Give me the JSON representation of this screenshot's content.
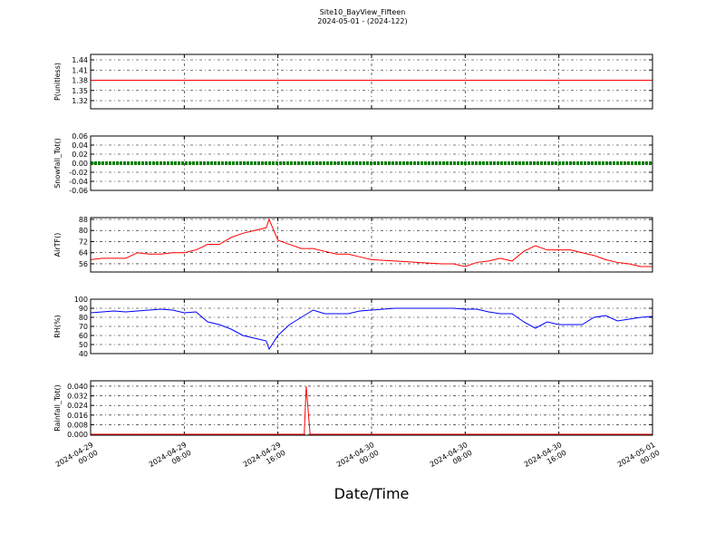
{
  "title": "Site10_BayView_Fifteen",
  "subtitle": "2024-05-01 - (2024-122)",
  "x_axis": {
    "label": "Date/Time",
    "xlim": [
      "2024-04-29 00:00",
      "2024-05-01 00:00"
    ],
    "xticks": [
      "2024-04-29 00:00",
      "2024-04-29 08:00",
      "2024-04-29 16:00",
      "2024-04-30 00:00",
      "2024-04-30 08:00",
      "2024-04-30 16:00",
      "2024-05-01 00:00"
    ]
  },
  "chart_data": [
    {
      "type": "line",
      "ylabel": "P(unitless)",
      "ylim": [
        1.296,
        1.456
      ],
      "yticks": [
        1.32,
        1.35,
        1.38,
        1.41,
        1.44
      ],
      "grid": true,
      "series": [
        {
          "color": "#ff0000",
          "x": [
            "2024-04-29 00:00",
            "2024-05-01 00:00"
          ],
          "values": [
            1.38,
            1.38
          ]
        }
      ]
    },
    {
      "type": "line",
      "ylabel": "Snowfall_Tot()",
      "ylim": [
        -0.06,
        0.06
      ],
      "yticks": [
        -0.06,
        -0.04,
        -0.02,
        {
          "value": 0,
          "label": "0.00"
        },
        0.02,
        0.04,
        0.06
      ],
      "grid": true,
      "series": [
        {
          "color": "#008000",
          "marker": true,
          "x": [
            "2024-04-29 00:00",
            "2024-05-01 00:00"
          ],
          "values": [
            0,
            0
          ]
        }
      ]
    },
    {
      "type": "line",
      "ylabel": "AirTF()",
      "ylim": [
        50.1,
        89.3
      ],
      "yticks": [
        56,
        64,
        72,
        80,
        88
      ],
      "grid": true,
      "series": [
        {
          "color": "#ff0000",
          "x": [
            "2024-04-29 00:00",
            "2024-04-29 01:00",
            "2024-04-29 02:00",
            "2024-04-29 03:00",
            "2024-04-29 04:00",
            "2024-04-29 05:00",
            "2024-04-29 06:00",
            "2024-04-29 07:00",
            "2024-04-29 08:00",
            "2024-04-29 09:00",
            "2024-04-29 10:00",
            "2024-04-29 11:00",
            "2024-04-29 12:00",
            "2024-04-29 13:00",
            "2024-04-29 14:00",
            "2024-04-29 15:00",
            "2024-04-29 15:15",
            "2024-04-29 16:00",
            "2024-04-29 17:00",
            "2024-04-29 18:00",
            "2024-04-29 19:00",
            "2024-04-29 20:00",
            "2024-04-29 21:00",
            "2024-04-29 22:00",
            "2024-04-29 23:00",
            "2024-04-30 00:00",
            "2024-04-30 01:00",
            "2024-04-30 02:00",
            "2024-04-30 03:00",
            "2024-04-30 04:00",
            "2024-04-30 05:00",
            "2024-04-30 06:00",
            "2024-04-30 07:00",
            "2024-04-30 08:00",
            "2024-04-30 09:00",
            "2024-04-30 10:00",
            "2024-04-30 11:00",
            "2024-04-30 12:00",
            "2024-04-30 13:00",
            "2024-04-30 14:00",
            "2024-04-30 15:00",
            "2024-04-30 16:00",
            "2024-04-30 17:00",
            "2024-04-30 18:00",
            "2024-04-30 19:00",
            "2024-04-30 20:00",
            "2024-04-30 21:00",
            "2024-04-30 22:00",
            "2024-04-30 23:00",
            "2024-05-01 00:00"
          ],
          "values": [
            59,
            60,
            60,
            60,
            64,
            63,
            63,
            64,
            64,
            66,
            70,
            70,
            75,
            78,
            80,
            82,
            88,
            73,
            70,
            67,
            67,
            65,
            63,
            63,
            61,
            59,
            58.5,
            58,
            57.5,
            57,
            56.5,
            56,
            56,
            54,
            57,
            58,
            60,
            58,
            65,
            69,
            66,
            66,
            66,
            64,
            62,
            59,
            57,
            56,
            54,
            54
          ]
        }
      ]
    },
    {
      "type": "line",
      "ylabel": "RH(%)",
      "ylim": [
        40,
        100
      ],
      "yticks": [
        40,
        50,
        60,
        70,
        80,
        90,
        100
      ],
      "grid": true,
      "series": [
        {
          "color": "#0000ff",
          "x": [
            "2024-04-29 00:00",
            "2024-04-29 01:00",
            "2024-04-29 02:00",
            "2024-04-29 03:00",
            "2024-04-29 04:00",
            "2024-04-29 05:00",
            "2024-04-29 06:00",
            "2024-04-29 07:00",
            "2024-04-29 08:00",
            "2024-04-29 09:00",
            "2024-04-29 10:00",
            "2024-04-29 11:00",
            "2024-04-29 12:00",
            "2024-04-29 13:00",
            "2024-04-29 14:00",
            "2024-04-29 15:00",
            "2024-04-29 15:15",
            "2024-04-29 16:00",
            "2024-04-29 17:00",
            "2024-04-29 18:00",
            "2024-04-29 19:00",
            "2024-04-29 20:00",
            "2024-04-29 21:00",
            "2024-04-29 22:00",
            "2024-04-29 23:00",
            "2024-04-30 00:00",
            "2024-04-30 01:00",
            "2024-04-30 02:00",
            "2024-04-30 03:00",
            "2024-04-30 04:00",
            "2024-04-30 05:00",
            "2024-04-30 06:00",
            "2024-04-30 07:00",
            "2024-04-30 08:00",
            "2024-04-30 09:00",
            "2024-04-30 10:00",
            "2024-04-30 11:00",
            "2024-04-30 12:00",
            "2024-04-30 13:00",
            "2024-04-30 14:00",
            "2024-04-30 15:00",
            "2024-04-30 16:00",
            "2024-04-30 17:00",
            "2024-04-30 18:00",
            "2024-04-30 19:00",
            "2024-04-30 20:00",
            "2024-04-30 21:00",
            "2024-04-30 22:00",
            "2024-04-30 23:00",
            "2024-05-01 00:00"
          ],
          "values": [
            85,
            86,
            87,
            86,
            87,
            88,
            89,
            88,
            85,
            86,
            75,
            72,
            67,
            60,
            57,
            54,
            45,
            60,
            72,
            80,
            88,
            84,
            84,
            84,
            87,
            88,
            89,
            90,
            90,
            90,
            90,
            90,
            90,
            89,
            89,
            86,
            84,
            84,
            75,
            68,
            75,
            72,
            72,
            72,
            80,
            82,
            76,
            78,
            80,
            81
          ]
        }
      ]
    },
    {
      "type": "line",
      "ylabel": "Rainfall_Tot()",
      "ylim": [
        -0.00075,
        0.0445
      ],
      "yticks": [
        {
          "value": 0,
          "label": "0.000"
        },
        {
          "value": 0.008,
          "label": "0.008"
        },
        {
          "value": 0.016,
          "label": "0.016"
        },
        {
          "value": 0.024,
          "label": "0.024"
        },
        {
          "value": 0.032,
          "label": "0.032"
        },
        {
          "value": 0.04,
          "label": "0.040"
        }
      ],
      "grid": true,
      "series": [
        {
          "color": "#ff0000",
          "x": [
            "2024-04-29 00:00",
            "2024-04-29 18:15",
            "2024-04-29 18:25",
            "2024-04-29 18:45",
            "2024-05-01 00:00"
          ],
          "values": [
            0,
            0,
            0.04,
            0,
            0
          ]
        }
      ]
    }
  ]
}
